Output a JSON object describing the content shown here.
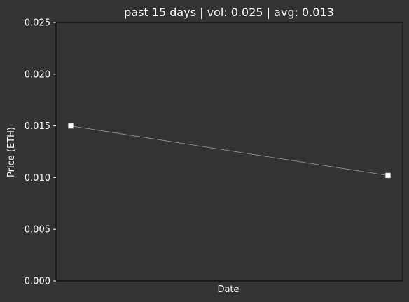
{
  "chart_data": {
    "type": "line",
    "title": "past 15 days | vol: 0.025 | avg: 0.013",
    "xlabel": "Date",
    "ylabel": "Price (ETH)",
    "ylim": [
      0,
      0.025
    ],
    "y_ticks": [
      "0.000",
      "0.005",
      "0.010",
      "0.015",
      "0.020",
      "0.025"
    ],
    "x_ticks": [],
    "grid": false,
    "series": [
      {
        "values": [
          0.015,
          0.0102
        ]
      }
    ],
    "colors": {
      "background": "#333333",
      "axes_background": "#333333",
      "axes_edge": "#000000",
      "text": "#ffffff",
      "line": "#999999",
      "marker": "#ffffff"
    }
  }
}
